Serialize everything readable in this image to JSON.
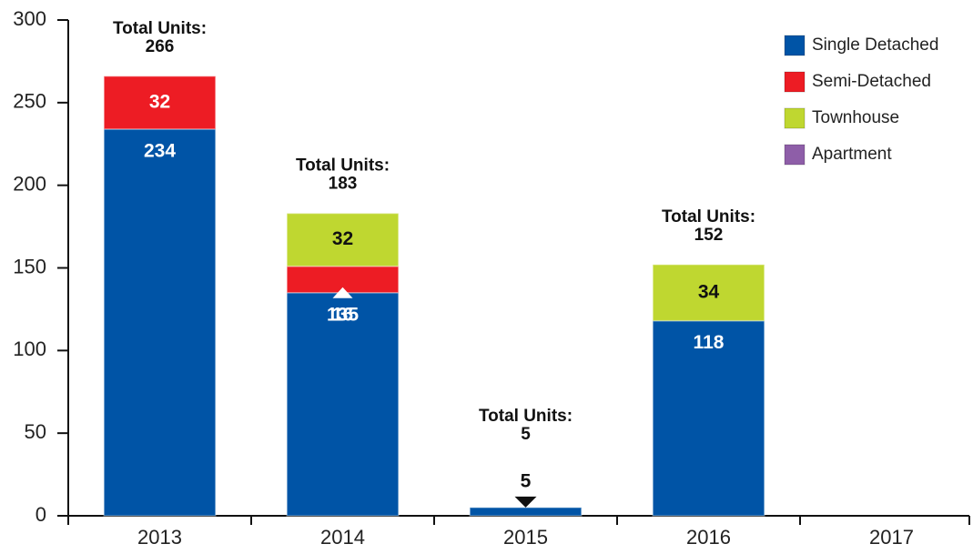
{
  "chart_data": {
    "type": "stacked_bar",
    "categories": [
      "2013",
      "2014",
      "2015",
      "2016",
      "2017"
    ],
    "series": [
      {
        "name": "Single Detached",
        "color": "#0054a6",
        "values": [
          234,
          135,
          5,
          118,
          null
        ]
      },
      {
        "name": "Semi-Detached",
        "color": "#ed1c24",
        "values": [
          32,
          16,
          null,
          null,
          null
        ]
      },
      {
        "name": "Townhouse",
        "color": "#bfd730",
        "values": [
          null,
          32,
          null,
          34,
          null
        ]
      },
      {
        "name": "Apartment",
        "color": "#8e5ea8",
        "values": [
          null,
          null,
          null,
          null,
          null
        ]
      }
    ],
    "totals": {
      "label": "Total Units:",
      "values": [
        266,
        183,
        5,
        152,
        null
      ]
    },
    "ylim": [
      0,
      300
    ],
    "yticks": [
      0,
      50,
      100,
      150,
      200,
      250,
      300
    ],
    "legend": "top-right"
  }
}
